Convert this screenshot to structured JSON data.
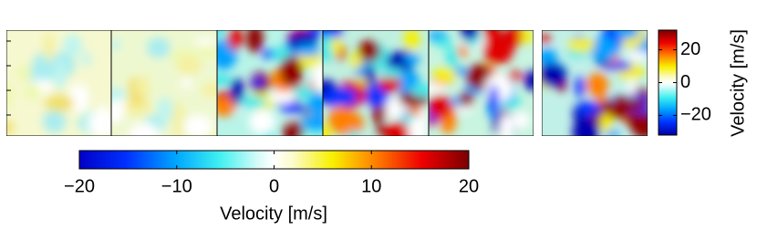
{
  "colorbars": [
    {
      "label": "Velocity  [m/s]",
      "orientation": "vertical",
      "lim": [
        -32,
        32
      ],
      "ticks": [
        {
          "value": 20,
          "label": "20"
        },
        {
          "value": 0,
          "label": "0"
        },
        {
          "value": -20,
          "label": "−20"
        }
      ]
    },
    {
      "label": "Velocity  [m/s]",
      "orientation": "horizontal",
      "lim": [
        -20,
        20
      ],
      "ticks": [
        {
          "value": -20,
          "label": "−20"
        },
        {
          "value": -10,
          "label": "−10"
        },
        0,
        10,
        {
          "value": 20,
          "label": "20"
        }
      ]
    }
  ]
}
